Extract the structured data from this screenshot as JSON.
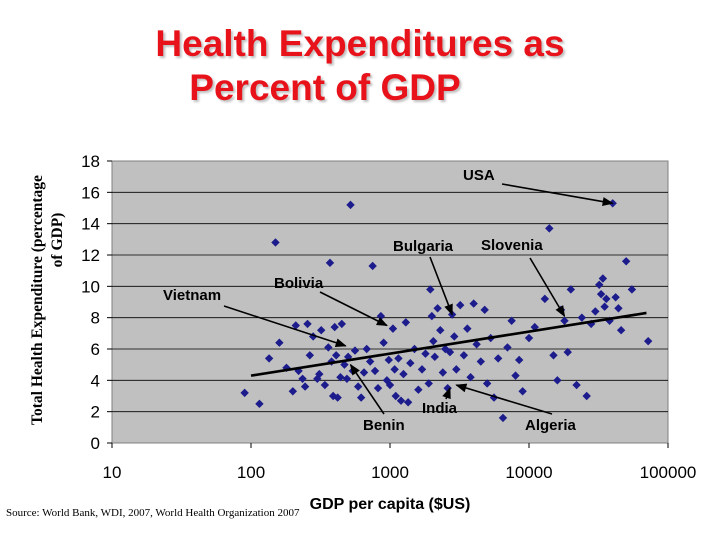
{
  "slide": {
    "title_line1": "Health Expenditures as",
    "title_line2": "Percent of GDP",
    "source": "Source: World Bank, WDI, 2007, World Health Organization 2007"
  },
  "colors": {
    "title": "#e8121a",
    "plot_bg": "#c0c0c0",
    "marker": "#1c1c8c",
    "trend": "#000000"
  },
  "chart_data": {
    "type": "scatter",
    "title": "Health Expenditures as Percent of GDP",
    "xlabel": "GDP per capita ($US)",
    "ylabel": "Total Health Expenditure (percentage of GDP)",
    "x_scale": "log",
    "xlim": [
      10,
      100000
    ],
    "ylim": [
      0,
      18
    ],
    "x_ticks": [
      10,
      100,
      1000,
      10000,
      100000
    ],
    "x_tick_labels": [
      "10",
      "100",
      "1000",
      "10000",
      "100000"
    ],
    "y_ticks": [
      0,
      2,
      4,
      6,
      8,
      10,
      12,
      14,
      16,
      18
    ],
    "y_tick_labels": [
      "0",
      "2",
      "4",
      "6",
      "8",
      "10",
      "12",
      "14",
      "16",
      "18"
    ],
    "grid": "horizontal",
    "trendline": {
      "x": [
        100,
        70000
      ],
      "y": [
        4.3,
        8.3
      ]
    },
    "points": [
      {
        "x": 90,
        "y": 3.2
      },
      {
        "x": 115,
        "y": 2.5
      },
      {
        "x": 135,
        "y": 5.4
      },
      {
        "x": 150,
        "y": 12.8
      },
      {
        "x": 160,
        "y": 6.4
      },
      {
        "x": 180,
        "y": 4.8
      },
      {
        "x": 200,
        "y": 3.3
      },
      {
        "x": 210,
        "y": 7.5
      },
      {
        "x": 220,
        "y": 4.6
      },
      {
        "x": 235,
        "y": 4.1
      },
      {
        "x": 245,
        "y": 3.6
      },
      {
        "x": 255,
        "y": 7.6
      },
      {
        "x": 265,
        "y": 5.6
      },
      {
        "x": 280,
        "y": 6.8
      },
      {
        "x": 300,
        "y": 4.1
      },
      {
        "x": 310,
        "y": 4.4
      },
      {
        "x": 320,
        "y": 7.2
      },
      {
        "x": 340,
        "y": 3.7
      },
      {
        "x": 360,
        "y": 6.1
      },
      {
        "x": 370,
        "y": 11.5
      },
      {
        "x": 380,
        "y": 5.2
      },
      {
        "x": 390,
        "y": 3.0
      },
      {
        "x": 400,
        "y": 7.4
      },
      {
        "x": 410,
        "y": 5.6
      },
      {
        "x": 420,
        "y": 2.9
      },
      {
        "x": 440,
        "y": 4.2
      },
      {
        "x": 450,
        "y": 7.6
      },
      {
        "x": 470,
        "y": 5.0
      },
      {
        "x": 490,
        "y": 4.1
      },
      {
        "x": 500,
        "y": 5.5
      },
      {
        "x": 520,
        "y": 15.2
      },
      {
        "x": 540,
        "y": 4.6
      },
      {
        "x": 560,
        "y": 5.9
      },
      {
        "x": 590,
        "y": 3.6
      },
      {
        "x": 620,
        "y": 2.9
      },
      {
        "x": 650,
        "y": 4.5
      },
      {
        "x": 680,
        "y": 6.0
      },
      {
        "x": 720,
        "y": 5.2
      },
      {
        "x": 750,
        "y": 11.3
      },
      {
        "x": 780,
        "y": 4.6
      },
      {
        "x": 820,
        "y": 3.5
      },
      {
        "x": 860,
        "y": 8.1
      },
      {
        "x": 900,
        "y": 6.4
      },
      {
        "x": 950,
        "y": 4.0
      },
      {
        "x": 980,
        "y": 5.3
      },
      {
        "x": 1000,
        "y": 3.7
      },
      {
        "x": 1050,
        "y": 7.3
      },
      {
        "x": 1080,
        "y": 4.7
      },
      {
        "x": 1100,
        "y": 3.0
      },
      {
        "x": 1150,
        "y": 5.4
      },
      {
        "x": 1200,
        "y": 2.7
      },
      {
        "x": 1250,
        "y": 4.4
      },
      {
        "x": 1300,
        "y": 7.7
      },
      {
        "x": 1350,
        "y": 2.6
      },
      {
        "x": 1400,
        "y": 5.1
      },
      {
        "x": 1500,
        "y": 6.0
      },
      {
        "x": 1600,
        "y": 3.4
      },
      {
        "x": 1700,
        "y": 4.7
      },
      {
        "x": 1800,
        "y": 5.7
      },
      {
        "x": 1900,
        "y": 3.8
      },
      {
        "x": 1950,
        "y": 9.8
      },
      {
        "x": 2000,
        "y": 8.1
      },
      {
        "x": 2050,
        "y": 6.5
      },
      {
        "x": 2100,
        "y": 5.5
      },
      {
        "x": 2200,
        "y": 8.6
      },
      {
        "x": 2300,
        "y": 7.2
      },
      {
        "x": 2400,
        "y": 4.5
      },
      {
        "x": 2500,
        "y": 6.0
      },
      {
        "x": 2600,
        "y": 3.5
      },
      {
        "x": 2700,
        "y": 5.8
      },
      {
        "x": 2800,
        "y": 8.2
      },
      {
        "x": 2900,
        "y": 6.8
      },
      {
        "x": 3000,
        "y": 4.7
      },
      {
        "x": 3200,
        "y": 8.8
      },
      {
        "x": 3400,
        "y": 5.6
      },
      {
        "x": 3600,
        "y": 7.3
      },
      {
        "x": 3800,
        "y": 4.2
      },
      {
        "x": 4000,
        "y": 8.9
      },
      {
        "x": 4200,
        "y": 6.3
      },
      {
        "x": 4500,
        "y": 5.2
      },
      {
        "x": 4800,
        "y": 8.5
      },
      {
        "x": 5000,
        "y": 3.8
      },
      {
        "x": 5300,
        "y": 6.7
      },
      {
        "x": 5600,
        "y": 2.9
      },
      {
        "x": 6000,
        "y": 5.4
      },
      {
        "x": 6500,
        "y": 1.6
      },
      {
        "x": 7000,
        "y": 6.1
      },
      {
        "x": 7500,
        "y": 7.8
      },
      {
        "x": 8000,
        "y": 4.3
      },
      {
        "x": 8500,
        "y": 5.3
      },
      {
        "x": 9000,
        "y": 3.3
      },
      {
        "x": 10000,
        "y": 6.7
      },
      {
        "x": 11000,
        "y": 7.4
      },
      {
        "x": 13000,
        "y": 9.2
      },
      {
        "x": 14000,
        "y": 13.7
      },
      {
        "x": 15000,
        "y": 5.6
      },
      {
        "x": 16000,
        "y": 4.0
      },
      {
        "x": 17000,
        "y": 8.5
      },
      {
        "x": 18000,
        "y": 7.8
      },
      {
        "x": 19000,
        "y": 5.8
      },
      {
        "x": 20000,
        "y": 9.8
      },
      {
        "x": 22000,
        "y": 3.7
      },
      {
        "x": 24000,
        "y": 8.0
      },
      {
        "x": 26000,
        "y": 3.0
      },
      {
        "x": 28000,
        "y": 7.6
      },
      {
        "x": 30000,
        "y": 8.4
      },
      {
        "x": 32000,
        "y": 10.1
      },
      {
        "x": 33000,
        "y": 9.5
      },
      {
        "x": 34000,
        "y": 10.5
      },
      {
        "x": 35000,
        "y": 8.7
      },
      {
        "x": 36000,
        "y": 9.2
      },
      {
        "x": 38000,
        "y": 7.8
      },
      {
        "x": 40000,
        "y": 15.3
      },
      {
        "x": 42000,
        "y": 9.3
      },
      {
        "x": 44000,
        "y": 8.6
      },
      {
        "x": 46000,
        "y": 7.2
      },
      {
        "x": 50000,
        "y": 11.6
      },
      {
        "x": 55000,
        "y": 9.8
      },
      {
        "x": 72000,
        "y": 6.5
      }
    ],
    "annotations": [
      {
        "label": "USA",
        "target": {
          "x": 40000,
          "y": 15.3
        }
      },
      {
        "label": "Bulgaria",
        "target": {
          "x": 2800,
          "y": 8.2
        }
      },
      {
        "label": "Slovenia",
        "target": {
          "x": 18000,
          "y": 8.1
        }
      },
      {
        "label": "Bolivia",
        "target": {
          "x": 950,
          "y": 7.5
        }
      },
      {
        "label": "Vietnam",
        "target": {
          "x": 480,
          "y": 6.2
        }
      },
      {
        "label": "India",
        "target": {
          "x": 2700,
          "y": 3.5
        }
      },
      {
        "label": "Benin",
        "target": {
          "x": 520,
          "y": 5.0
        }
      },
      {
        "label": "Algeria",
        "target": {
          "x": 3000,
          "y": 3.7
        }
      }
    ]
  }
}
